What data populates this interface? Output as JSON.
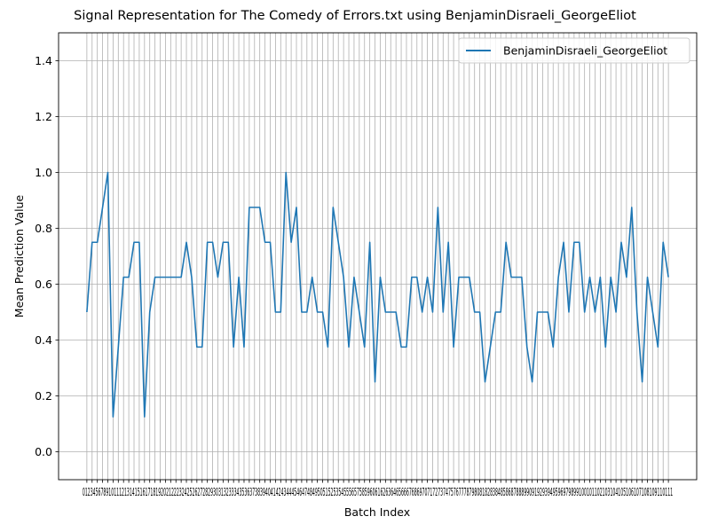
{
  "chart_data": {
    "type": "line",
    "title": "Signal Representation for The Comedy of Errors.txt using BenjaminDisraeli_GeorgeEliot",
    "xlabel": "Batch Index",
    "ylabel": "Mean Prediction Value",
    "xlim": [
      -5.4,
      116.4
    ],
    "ylim": [
      -0.1,
      1.5
    ],
    "yticks": [
      0.0,
      0.2,
      0.4,
      0.6,
      0.8,
      1.0,
      1.2,
      1.4
    ],
    "ytick_labels": [
      "0.0",
      "0.2",
      "0.4",
      "0.6",
      "0.8",
      "1.0",
      "1.2",
      "1.4"
    ],
    "xtick_count": 112,
    "xtick_text": "0123456789101112131415161718192021222324252627282930313233343536373839404142434445464748495051525354555657585960616263646566676869707172737475767778798081828384858687888990919293949596979899100101102103104105106107108109110111",
    "grid": true,
    "legend_position": "top-right",
    "colors": {
      "series": "#1f77b4",
      "grid": "#b0b0b0",
      "axes": "#000000"
    },
    "series": [
      {
        "name": "BenjaminDisraeli_GeorgeEliot",
        "x": [
          0,
          1,
          2,
          3,
          4,
          5,
          6,
          7,
          8,
          9,
          10,
          11,
          12,
          13,
          14,
          15,
          16,
          17,
          18,
          19,
          20,
          21,
          22,
          23,
          24,
          25,
          26,
          27,
          28,
          29,
          30,
          31,
          32,
          33,
          34,
          35,
          36,
          37,
          38,
          39,
          40,
          41,
          42,
          43,
          44,
          45,
          46,
          47,
          48,
          49,
          50,
          51,
          52,
          53,
          54,
          55,
          56,
          57,
          58,
          59,
          60,
          61,
          62,
          63,
          64,
          65,
          66,
          67,
          68,
          69,
          70,
          71,
          72,
          73,
          74,
          75,
          76,
          77,
          78,
          79,
          80,
          81,
          82,
          83,
          84,
          85,
          86,
          87,
          88,
          89,
          90,
          91,
          92,
          93,
          94,
          95,
          96,
          97,
          98,
          99,
          100,
          101,
          102,
          103,
          104,
          105,
          106,
          107,
          108,
          109,
          110,
          111
        ],
        "values": [
          0.5,
          0.75,
          0.75,
          0.875,
          1.0,
          0.125,
          0.375,
          0.625,
          0.625,
          0.75,
          0.75,
          0.125,
          0.5,
          0.625,
          0.625,
          0.625,
          0.625,
          0.625,
          0.625,
          0.75,
          0.625,
          0.375,
          0.375,
          0.75,
          0.75,
          0.625,
          0.75,
          0.75,
          0.375,
          0.625,
          0.375,
          0.875,
          0.875,
          0.875,
          0.75,
          0.75,
          0.5,
          0.5,
          1.0,
          0.75,
          0.875,
          0.5,
          0.5,
          0.625,
          0.5,
          0.5,
          0.375,
          0.875,
          0.75,
          0.625,
          0.375,
          0.625,
          0.5,
          0.375,
          0.75,
          0.25,
          0.625,
          0.5,
          0.5,
          0.5,
          0.375,
          0.375,
          0.625,
          0.625,
          0.5,
          0.625,
          0.5,
          0.875,
          0.5,
          0.75,
          0.375,
          0.625,
          0.625,
          0.625,
          0.5,
          0.5,
          0.25,
          0.375,
          0.5,
          0.5,
          0.75,
          0.625,
          0.625,
          0.625,
          0.375,
          0.25,
          0.5,
          0.5,
          0.5,
          0.375,
          0.625,
          0.75,
          0.5,
          0.75,
          0.75,
          0.5,
          0.625,
          0.5,
          0.625,
          0.375,
          0.625,
          0.5,
          0.75,
          0.625,
          0.875,
          0.5,
          0.25,
          0.625,
          0.5,
          0.375,
          0.75,
          0.625
        ]
      }
    ]
  }
}
